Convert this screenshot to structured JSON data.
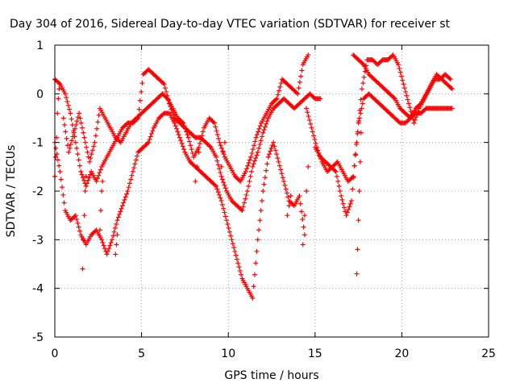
{
  "chart_data": {
    "type": "scatter",
    "title": "Day 304 of 2016, Sidereal Day-to-day VTEC variation (SDTVAR) for receiver st",
    "xlabel": "GPS time / hours",
    "ylabel": "SDTVAR / TECUs",
    "xlim": [
      0,
      25
    ],
    "ylim": [
      -5,
      1
    ],
    "xticks": [
      0,
      5,
      10,
      15,
      20,
      25
    ],
    "yticks": [
      -5,
      -4,
      -3,
      -2,
      -1,
      0,
      1
    ],
    "grid": true,
    "legend": "none",
    "marker": "plus",
    "color": "#ff0000",
    "series": [
      {
        "x": [
          0.0,
          0.3,
          0.6,
          0.9,
          1.2,
          1.5,
          1.8,
          2.1,
          2.4,
          2.7,
          3.0,
          3.3,
          3.6,
          3.9,
          4.2,
          4.5,
          4.8,
          5.1,
          5.4,
          5.7,
          6.0,
          6.3,
          6.6,
          6.9,
          7.2,
          7.5,
          7.8,
          8.1,
          8.4,
          8.7,
          9.0,
          9.3,
          9.6,
          9.9,
          10.2,
          10.5,
          10.8,
          11.1,
          11.4,
          11.7,
          12.0,
          12.3,
          12.6,
          12.9,
          13.2,
          13.5,
          13.8,
          14.1,
          14.4,
          14.7,
          15.0,
          15.3
        ],
        "y": [
          0.3,
          0.2,
          0.0,
          -0.4,
          -1.0,
          -1.6,
          -1.9,
          -1.6,
          -1.8,
          -1.5,
          -1.3,
          -1.1,
          -0.9,
          -0.7,
          -0.6,
          -0.6,
          -0.5,
          0.4,
          0.5,
          0.4,
          0.3,
          0.2,
          -0.2,
          -0.5,
          -0.6,
          -0.7,
          -0.8,
          -0.9,
          -0.9,
          -1.0,
          -1.1,
          -1.3,
          -1.7,
          -2.0,
          -2.2,
          -2.3,
          -2.4,
          -2.0,
          -1.5,
          -1.2,
          -0.8,
          -0.5,
          -0.3,
          -0.2,
          -0.1,
          -0.2,
          -0.3,
          -0.2,
          -0.1,
          0.0,
          -0.1,
          -0.1
        ]
      },
      {
        "x": [
          0.0,
          0.3,
          0.6,
          0.9,
          1.2,
          1.5,
          1.8,
          2.1,
          2.4,
          2.7,
          3.0,
          3.3,
          3.6,
          3.9,
          4.2,
          4.5,
          4.8,
          5.1,
          5.4,
          5.7,
          6.0,
          6.3,
          6.6,
          6.9,
          7.2,
          7.5,
          7.8,
          8.1,
          8.4,
          8.7,
          9.0,
          9.3,
          9.6,
          9.9,
          10.2,
          10.5,
          10.8,
          11.1,
          11.4,
          11.7,
          12.0,
          12.3,
          12.6,
          12.9,
          13.2,
          13.5,
          13.8,
          14.1,
          14.4
        ],
        "y": [
          -1.0,
          -1.6,
          -2.4,
          -2.6,
          -2.5,
          -2.9,
          -3.1,
          -2.9,
          -2.8,
          -3.0,
          -3.3,
          -3.0,
          -2.6,
          -2.3,
          -2.0,
          -1.6,
          -1.2,
          -1.1,
          -1.0,
          -0.7,
          -0.5,
          -0.4,
          -0.4,
          -0.6,
          -0.9,
          -1.2,
          -1.4,
          -1.5,
          -1.6,
          -1.7,
          -1.8,
          -1.9,
          -2.2,
          -2.6,
          -3.0,
          -3.4,
          -3.8,
          -4.0,
          -4.2,
          -3.0,
          -2.0,
          -1.3,
          -1.0,
          -1.4,
          -1.8,
          -2.2,
          -2.3,
          -2.1,
          -2.9
        ]
      },
      {
        "x": [
          0.5,
          0.8,
          1.1,
          1.4,
          1.7,
          2.0,
          2.3,
          2.6,
          2.9,
          3.2,
          3.5,
          3.8,
          4.1,
          4.4,
          4.7,
          5.0,
          5.3,
          5.6,
          5.9,
          6.2,
          6.5,
          6.8,
          7.1,
          7.4,
          7.7,
          8.0,
          8.3,
          8.6,
          8.9,
          9.2,
          9.5,
          9.8,
          10.1,
          10.4,
          10.7,
          11.0,
          11.3,
          11.6,
          11.9,
          12.2,
          12.5,
          12.8,
          13.1,
          13.4,
          13.7,
          14.0,
          14.3,
          14.6
        ],
        "y": [
          -0.5,
          -1.2,
          -0.8,
          -0.4,
          -0.9,
          -1.4,
          -1.0,
          -0.3,
          -0.5,
          -0.7,
          -0.9,
          -1.0,
          -0.8,
          -0.6,
          -0.5,
          -0.4,
          -0.3,
          -0.2,
          -0.1,
          0.0,
          -0.1,
          -0.3,
          -0.5,
          -0.6,
          -0.9,
          -1.3,
          -1.1,
          -0.7,
          -0.5,
          -0.6,
          -1.0,
          -1.3,
          -1.5,
          -1.7,
          -1.8,
          -1.6,
          -1.3,
          -0.9,
          -0.6,
          -0.4,
          -0.2,
          -0.1,
          0.3,
          0.2,
          0.1,
          0.0,
          0.6,
          0.8
        ]
      },
      {
        "x": [
          14.5,
          14.8,
          15.1,
          15.4,
          15.7,
          16.0,
          16.3,
          16.6,
          16.9,
          17.2,
          17.5,
          17.8,
          18.1,
          18.4,
          18.7,
          19.0,
          19.3,
          19.6,
          19.9,
          20.2,
          20.5,
          20.8,
          21.1,
          21.4,
          21.7,
          22.0,
          22.3,
          22.6,
          22.9
        ],
        "y": [
          -0.3,
          -0.7,
          -1.1,
          -1.4,
          -1.6,
          -1.5,
          -1.4,
          -1.6,
          -1.8,
          -1.7,
          -0.6,
          -0.1,
          0.0,
          -0.1,
          -0.2,
          -0.3,
          -0.4,
          -0.5,
          -0.6,
          -0.6,
          -0.5,
          -0.4,
          -0.4,
          -0.3,
          -0.3,
          -0.3,
          -0.3,
          -0.3,
          -0.3
        ]
      },
      {
        "x": [
          15.0,
          15.3,
          15.6,
          15.9,
          16.2,
          16.5,
          16.8,
          17.1,
          17.4,
          17.7,
          18.0,
          18.3,
          18.6,
          18.9,
          19.2,
          19.5,
          19.8,
          20.1,
          20.4,
          20.7,
          21.0,
          21.3,
          21.6,
          21.9,
          22.2,
          22.5,
          22.8
        ],
        "y": [
          -1.1,
          -1.3,
          -1.4,
          -1.5,
          -1.6,
          -2.1,
          -2.5,
          -2.2,
          -1.0,
          0.1,
          0.7,
          0.7,
          0.6,
          0.7,
          0.7,
          0.8,
          0.6,
          0.2,
          -0.2,
          -0.6,
          -0.3,
          -0.1,
          0.1,
          0.3,
          0.3,
          0.4,
          0.3
        ]
      },
      {
        "x": [
          17.2,
          17.5,
          17.8,
          18.1,
          18.4,
          18.7,
          19.0,
          19.3,
          19.6,
          19.9,
          20.2,
          20.5,
          20.8,
          21.1,
          21.4,
          21.7,
          22.0,
          22.3,
          22.6,
          22.9
        ],
        "y": [
          0.8,
          0.7,
          0.6,
          0.4,
          0.3,
          0.2,
          0.1,
          0.0,
          -0.1,
          -0.3,
          -0.4,
          -0.5,
          -0.3,
          -0.2,
          0.0,
          0.2,
          0.4,
          0.3,
          0.2,
          0.1
        ]
      },
      {
        "x": [
          0.0,
          0.05,
          0.1,
          0.15,
          0.2,
          0.25,
          0.3,
          1.6,
          1.65,
          1.7,
          1.75,
          1.8,
          2.6,
          2.65,
          2.7,
          2.75,
          3.5,
          3.55,
          3.6,
          8.1,
          8.2,
          8.3,
          9.6,
          9.7,
          9.8,
          13.4,
          13.5,
          13.6,
          14.3,
          14.4,
          14.5,
          14.6,
          17.4,
          17.45,
          17.5,
          17.55,
          17.6,
          17.65
        ],
        "y": [
          -1.7,
          -1.3,
          -0.9,
          -0.4,
          -0.1,
          0.1,
          0.2,
          -3.6,
          -3.0,
          -2.5,
          -2.0,
          -1.7,
          -2.8,
          -2.4,
          -2.0,
          -1.8,
          -3.3,
          -3.1,
          -2.9,
          -1.8,
          -1.5,
          -1.2,
          -1.5,
          -1.2,
          -1.0,
          -2.5,
          -2.3,
          -2.1,
          -3.1,
          -2.5,
          -2.0,
          -1.5,
          -3.7,
          -3.2,
          -2.6,
          -2.0,
          -1.4,
          -0.8
        ]
      }
    ]
  }
}
